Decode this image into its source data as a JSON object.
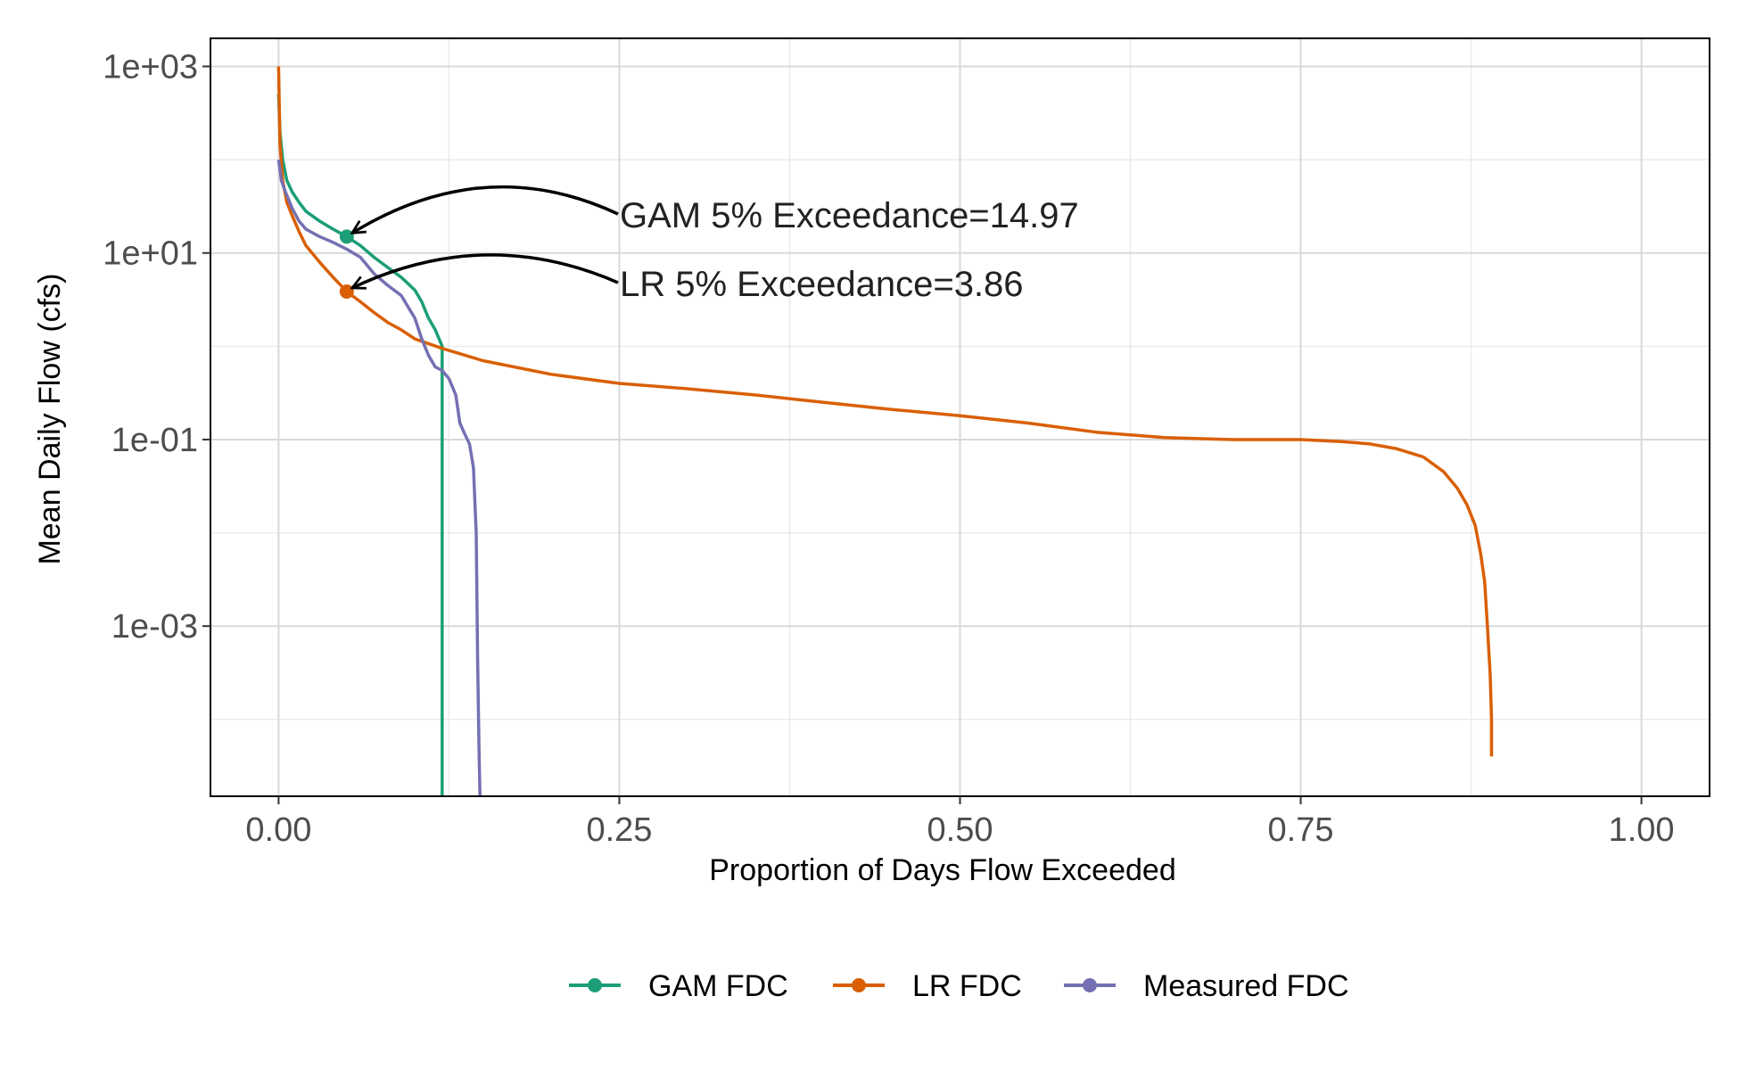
{
  "chart_data": {
    "type": "line",
    "title": "",
    "xlabel": "Proportion of Days Flow Exceeded",
    "ylabel": "Mean Daily Flow (cfs)",
    "x_scale": "linear",
    "y_scale": "log10",
    "xlim": [
      -0.05,
      1.05
    ],
    "ylim": [
      1.5e-05,
      2000
    ],
    "x_ticks": [
      {
        "value": 0.0,
        "label": "0.00"
      },
      {
        "value": 0.25,
        "label": "0.25"
      },
      {
        "value": 0.5,
        "label": "0.50"
      },
      {
        "value": 0.75,
        "label": "0.75"
      },
      {
        "value": 1.0,
        "label": "1.00"
      }
    ],
    "y_ticks": [
      {
        "value": 1000,
        "label": "1e+03"
      },
      {
        "value": 10,
        "label": "1e+01"
      },
      {
        "value": 0.1,
        "label": "1e-01"
      },
      {
        "value": 0.001,
        "label": "1e-03"
      }
    ],
    "x_minor": [
      0.125,
      0.375,
      0.625,
      0.875
    ],
    "y_minor": [
      100,
      1,
      0.01,
      0.0001
    ],
    "grid": true,
    "legend_position": "bottom",
    "series": [
      {
        "name": "GAM FDC",
        "color": "#1b9e77",
        "x": [
          0.0,
          0.001,
          0.003,
          0.006,
          0.01,
          0.015,
          0.02,
          0.03,
          0.04,
          0.05,
          0.06,
          0.07,
          0.08,
          0.09,
          0.1,
          0.105,
          0.11,
          0.115,
          0.12,
          0.12
        ],
        "y": [
          500,
          200,
          100,
          60,
          45,
          35,
          28,
          22,
          18,
          15,
          12,
          9,
          7,
          5.5,
          4,
          3,
          2,
          1.5,
          1,
          1e-05
        ]
      },
      {
        "name": "LR FDC",
        "color": "#d95f02",
        "x": [
          0.0,
          0.001,
          0.003,
          0.006,
          0.01,
          0.015,
          0.02,
          0.03,
          0.04,
          0.05,
          0.06,
          0.07,
          0.08,
          0.09,
          0.1,
          0.12,
          0.15,
          0.2,
          0.25,
          0.3,
          0.35,
          0.4,
          0.45,
          0.5,
          0.55,
          0.6,
          0.65,
          0.7,
          0.75,
          0.78,
          0.8,
          0.82,
          0.84,
          0.855,
          0.865,
          0.872,
          0.878,
          0.882,
          0.885,
          0.887,
          0.889,
          0.89,
          0.89
        ],
        "y": [
          1000,
          150,
          60,
          35,
          25,
          17,
          12,
          8,
          5.5,
          3.86,
          3,
          2.3,
          1.8,
          1.5,
          1.2,
          0.95,
          0.7,
          0.5,
          0.4,
          0.35,
          0.3,
          0.25,
          0.21,
          0.18,
          0.15,
          0.12,
          0.105,
          0.1,
          0.1,
          0.095,
          0.09,
          0.08,
          0.065,
          0.045,
          0.03,
          0.02,
          0.012,
          0.006,
          0.003,
          0.001,
          0.0003,
          0.0001,
          4e-05
        ]
      },
      {
        "name": "Measured FDC",
        "color": "#7570b3",
        "x": [
          0.0,
          0.002,
          0.005,
          0.01,
          0.015,
          0.02,
          0.03,
          0.04,
          0.05,
          0.06,
          0.07,
          0.08,
          0.09,
          0.1,
          0.105,
          0.11,
          0.115,
          0.12,
          0.125,
          0.13,
          0.133,
          0.136,
          0.14,
          0.143,
          0.145,
          0.146,
          0.147,
          0.148
        ],
        "y": [
          100,
          60,
          45,
          30,
          22,
          18,
          15,
          13,
          11,
          9,
          6,
          4.5,
          3.5,
          2,
          1.2,
          0.8,
          0.6,
          0.55,
          0.45,
          0.3,
          0.15,
          0.12,
          0.09,
          0.05,
          0.01,
          0.0005,
          5e-05,
          1e-05
        ]
      }
    ],
    "points": [
      {
        "series": "GAM FDC",
        "x": 0.05,
        "y": 14.97
      },
      {
        "series": "LR FDC",
        "x": 0.05,
        "y": 3.86
      }
    ],
    "annotations": [
      {
        "text": "GAM 5% Exceedance=14.97",
        "target_x": 0.05,
        "target_y": 14.97
      },
      {
        "text": "LR 5% Exceedance=3.86",
        "target_x": 0.05,
        "target_y": 3.86
      }
    ],
    "legend": [
      {
        "label": "GAM FDC",
        "color": "#1b9e77"
      },
      {
        "label": "LR FDC",
        "color": "#d95f02"
      },
      {
        "label": "Measured FDC",
        "color": "#7570b3"
      }
    ]
  }
}
